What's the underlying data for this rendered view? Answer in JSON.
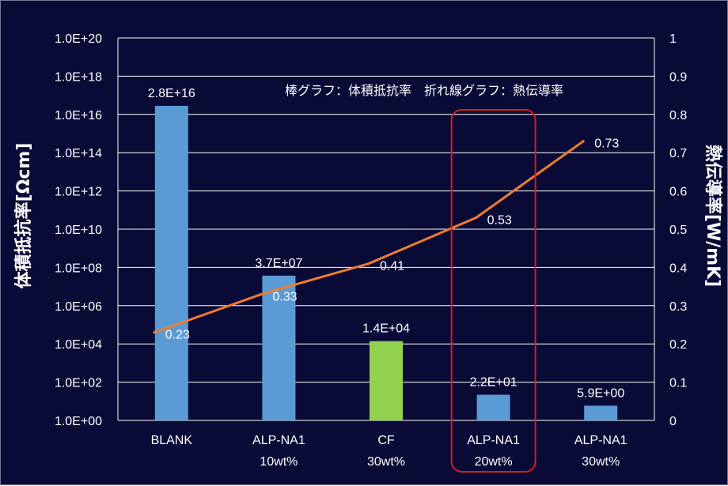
{
  "chart_data": {
    "type": "bar+line",
    "annotation": "棒グラフ：体積抵抗率　折れ線グラフ：熱伝導率",
    "categories": [
      {
        "line1": "BLANK",
        "line2": ""
      },
      {
        "line1": "ALP-NA1",
        "line2": "10wt%"
      },
      {
        "line1": "CF",
        "line2": "30wt%"
      },
      {
        "line1": "ALP-NA1",
        "line2": "20wt%"
      },
      {
        "line1": "ALP-NA1",
        "line2": "30wt%"
      }
    ],
    "bar_series": {
      "axis": "left",
      "values": [
        2.8e+16,
        37000000.0,
        14000.0,
        22,
        5.9
      ],
      "labels": [
        "2.8E+16",
        "3.7E+07",
        "1.4E+04",
        "2.2E+01",
        "5.9E+00"
      ],
      "colors": [
        "#5b9bd5",
        "#5b9bd5",
        "#92d050",
        "#5b9bd5",
        "#5b9bd5"
      ]
    },
    "line_series": {
      "axis": "right",
      "values": [
        0.23,
        0.33,
        0.41,
        0.53,
        0.73
      ],
      "labels": [
        "0.23",
        "0.33",
        "0.41",
        "0.53",
        "0.73"
      ],
      "color": "#ed7d31"
    },
    "left_axis": {
      "label": "体積抵抗率[Ωcm]",
      "scale": "log",
      "range_exp": [
        0,
        20
      ],
      "ticks": [
        "1.0E+00",
        "1.0E+02",
        "1.0E+04",
        "1.0E+06",
        "1.0E+08",
        "1.0E+10",
        "1.0E+12",
        "1.0E+14",
        "1.0E+16",
        "1.0E+18",
        "1.0E+20"
      ]
    },
    "right_axis": {
      "label": "熱伝導率[W/mK]",
      "range": [
        0,
        1
      ],
      "ticks": [
        "0",
        "0.1",
        "0.2",
        "0.3",
        "0.4",
        "0.5",
        "0.6",
        "0.7",
        "0.8",
        "0.9",
        "1"
      ]
    },
    "highlight": {
      "category_index": 3,
      "color": "#d02020"
    },
    "grid": true,
    "background": "#0a0a36",
    "gridline_color": "#ffffff"
  }
}
